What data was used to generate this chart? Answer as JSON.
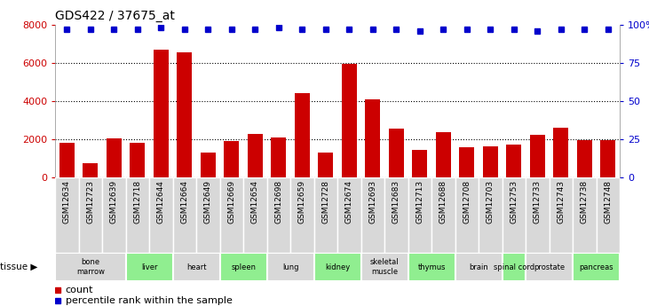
{
  "title": "GDS422 / 37675_at",
  "samples": [
    "GSM12634",
    "GSM12723",
    "GSM12639",
    "GSM12718",
    "GSM12644",
    "GSM12664",
    "GSM12649",
    "GSM12669",
    "GSM12654",
    "GSM12698",
    "GSM12659",
    "GSM12728",
    "GSM12674",
    "GSM12693",
    "GSM12683",
    "GSM12713",
    "GSM12688",
    "GSM12708",
    "GSM12703",
    "GSM12753",
    "GSM12733",
    "GSM12743",
    "GSM12738",
    "GSM12748"
  ],
  "counts": [
    1800,
    750,
    2050,
    1800,
    6700,
    6550,
    1300,
    1900,
    2300,
    2100,
    4400,
    1300,
    5950,
    4100,
    2550,
    1450,
    2350,
    1600,
    1650,
    1700,
    2250,
    2600,
    1950,
    1950
  ],
  "percentiles": [
    97,
    97,
    97,
    97,
    98,
    97,
    97,
    97,
    97,
    98,
    97,
    97,
    97,
    97,
    97,
    96,
    97,
    97,
    97,
    97,
    96,
    97,
    97,
    97
  ],
  "tissues": [
    {
      "name": "bone\nmarrow",
      "start": 0,
      "end": 3,
      "color": "#d8d8d8"
    },
    {
      "name": "liver",
      "start": 3,
      "end": 5,
      "color": "#90ee90"
    },
    {
      "name": "heart",
      "start": 5,
      "end": 7,
      "color": "#d8d8d8"
    },
    {
      "name": "spleen",
      "start": 7,
      "end": 9,
      "color": "#90ee90"
    },
    {
      "name": "lung",
      "start": 9,
      "end": 11,
      "color": "#d8d8d8"
    },
    {
      "name": "kidney",
      "start": 11,
      "end": 13,
      "color": "#90ee90"
    },
    {
      "name": "skeletal\nmuscle",
      "start": 13,
      "end": 15,
      "color": "#d8d8d8"
    },
    {
      "name": "thymus",
      "start": 15,
      "end": 17,
      "color": "#90ee90"
    },
    {
      "name": "brain",
      "start": 17,
      "end": 19,
      "color": "#d8d8d8"
    },
    {
      "name": "spinal cord",
      "start": 19,
      "end": 20,
      "color": "#90ee90"
    },
    {
      "name": "prostate",
      "start": 20,
      "end": 22,
      "color": "#d8d8d8"
    },
    {
      "name": "pancreas",
      "start": 22,
      "end": 24,
      "color": "#90ee90"
    }
  ],
  "bar_color": "#cc0000",
  "dot_color": "#0000cc",
  "ylim_left": [
    0,
    8000
  ],
  "ylim_right": [
    0,
    100
  ],
  "yticks_left": [
    0,
    2000,
    4000,
    6000,
    8000
  ],
  "yticks_right": [
    0,
    25,
    50,
    75,
    100
  ],
  "plot_bg": "#ffffff",
  "title_fontsize": 10,
  "tick_label_color_left": "#cc0000",
  "tick_label_color_right": "#0000cc",
  "sample_box_color": "#d8d8d8"
}
